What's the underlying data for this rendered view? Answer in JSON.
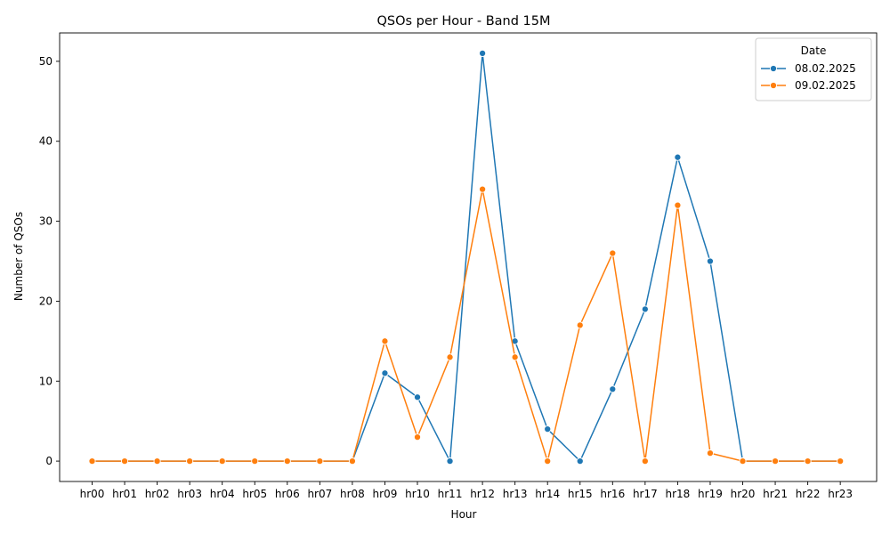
{
  "chart_data": {
    "type": "line",
    "title": "QSOs per Hour - Band 15M",
    "xlabel": "Hour",
    "ylabel": "Number of QSOs",
    "categories": [
      "hr00",
      "hr01",
      "hr02",
      "hr03",
      "hr04",
      "hr05",
      "hr06",
      "hr07",
      "hr08",
      "hr09",
      "hr10",
      "hr11",
      "hr12",
      "hr13",
      "hr14",
      "hr15",
      "hr16",
      "hr17",
      "hr18",
      "hr19",
      "hr20",
      "hr21",
      "hr22",
      "hr23"
    ],
    "ylim": [
      -2.55,
      53.55
    ],
    "yticks": [
      0,
      10,
      20,
      30,
      40,
      50
    ],
    "grid": false,
    "legend": {
      "title": "Date",
      "placement": "top-right"
    },
    "series": [
      {
        "name": "08.02.2025",
        "color": "#1f77b4",
        "values": [
          0,
          0,
          0,
          0,
          0,
          0,
          0,
          0,
          0,
          11,
          8,
          0,
          51,
          15,
          4,
          0,
          9,
          19,
          38,
          25,
          0,
          0,
          0,
          0
        ]
      },
      {
        "name": "09.02.2025",
        "color": "#ff7f0e",
        "values": [
          0,
          0,
          0,
          0,
          0,
          0,
          0,
          0,
          0,
          15,
          3,
          13,
          34,
          13,
          0,
          17,
          26,
          0,
          32,
          1,
          0,
          0,
          0,
          0
        ]
      }
    ]
  }
}
